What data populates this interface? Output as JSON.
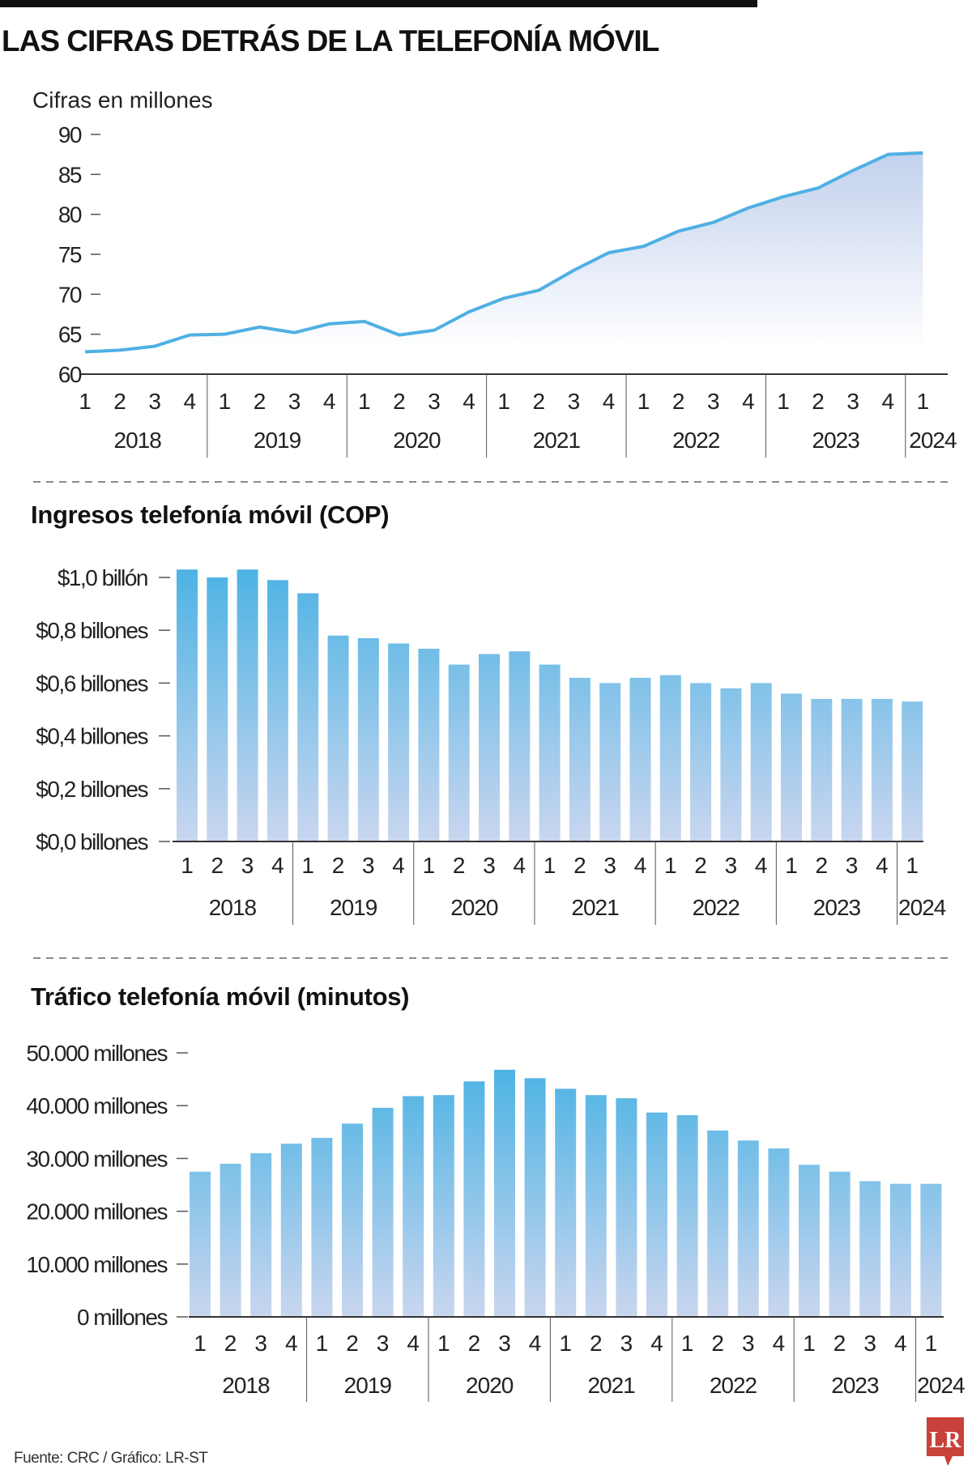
{
  "header": {
    "title": "LAS CIFRAS DETRÁS DE LA TELEFONÍA MÓVIL"
  },
  "footer": {
    "source": "Fuente: CRC / Gráfico: LR-ST"
  },
  "logo": {
    "text": "LR",
    "color": "#c8413b"
  },
  "colors": {
    "line": "#4fb0e3",
    "area_top": "#c1d0ec",
    "bar_top": "#4db3e4",
    "bar_bottom": "#c9d6ef"
  },
  "chart_data": [
    {
      "type": "area",
      "title": "",
      "ylabel": "Cifras en millones",
      "ylim": [
        60,
        90
      ],
      "yticks": [
        "90",
        "85",
        "80",
        "75",
        "70",
        "65",
        "60"
      ],
      "ytick_values": [
        90,
        85,
        80,
        75,
        70,
        65,
        60
      ],
      "quarters": [
        "1",
        "2",
        "3",
        "4",
        "1",
        "2",
        "3",
        "4",
        "1",
        "2",
        "3",
        "4",
        "1",
        "2",
        "3",
        "4",
        "1",
        "2",
        "3",
        "4",
        "1",
        "2",
        "3",
        "4",
        "1"
      ],
      "years": [
        "2018",
        "2019",
        "2020",
        "2021",
        "2022",
        "2023",
        "2024"
      ],
      "values": [
        62.8,
        63.0,
        63.5,
        64.9,
        65.0,
        65.9,
        65.2,
        66.3,
        66.6,
        64.9,
        65.5,
        67.8,
        69.5,
        70.5,
        73.0,
        75.2,
        76.0,
        77.9,
        79.0,
        80.8,
        82.2,
        83.3,
        85.5,
        87.5,
        87.7
      ],
      "grid": false
    },
    {
      "type": "bar",
      "title": "Ingresos telefonía móvil (COP)",
      "ylim": [
        0,
        1.0
      ],
      "yticks": [
        "$1,0 billón",
        "$0,8 billones",
        "$0,6 billones",
        "$0,4 billones",
        "$0,2 billones",
        "$0,0 billones"
      ],
      "ytick_values": [
        1.0,
        0.8,
        0.6,
        0.4,
        0.2,
        0.0
      ],
      "quarters": [
        "1",
        "2",
        "3",
        "4",
        "1",
        "2",
        "3",
        "4",
        "1",
        "2",
        "3",
        "4",
        "1",
        "2",
        "3",
        "4",
        "1",
        "2",
        "3",
        "4",
        "1",
        "2",
        "3",
        "4",
        "1"
      ],
      "years": [
        "2018",
        "2019",
        "2020",
        "2021",
        "2022",
        "2023",
        "2024"
      ],
      "values": [
        1.03,
        1.0,
        1.03,
        0.99,
        0.94,
        0.78,
        0.77,
        0.75,
        0.73,
        0.67,
        0.71,
        0.72,
        0.67,
        0.62,
        0.6,
        0.62,
        0.63,
        0.6,
        0.58,
        0.6,
        0.56,
        0.54,
        0.54,
        0.54,
        0.53
      ],
      "grid": false
    },
    {
      "type": "bar",
      "title": "Tráfico telefonía móvil (minutos)",
      "ylim": [
        0,
        50000
      ],
      "yticks": [
        "50.000 millones",
        "40.000 millones",
        "30.000 millones",
        "20.000 millones",
        "10.000 millones",
        "0 millones"
      ],
      "ytick_values": [
        50000,
        40000,
        30000,
        20000,
        10000,
        0
      ],
      "quarters": [
        "1",
        "2",
        "3",
        "4",
        "1",
        "2",
        "3",
        "4",
        "1",
        "2",
        "3",
        "4",
        "1",
        "2",
        "3",
        "4",
        "1",
        "2",
        "3",
        "4",
        "1",
        "2",
        "3",
        "4",
        "1"
      ],
      "years": [
        "2018",
        "2019",
        "2020",
        "2021",
        "2022",
        "2023",
        "2024"
      ],
      "values": [
        27500,
        29000,
        31000,
        32800,
        33900,
        36600,
        39600,
        41800,
        42000,
        44600,
        46800,
        45200,
        43200,
        42000,
        41400,
        38700,
        38200,
        35300,
        33400,
        31900,
        28800,
        27500,
        25700,
        25200,
        25200
      ],
      "grid": false
    }
  ]
}
